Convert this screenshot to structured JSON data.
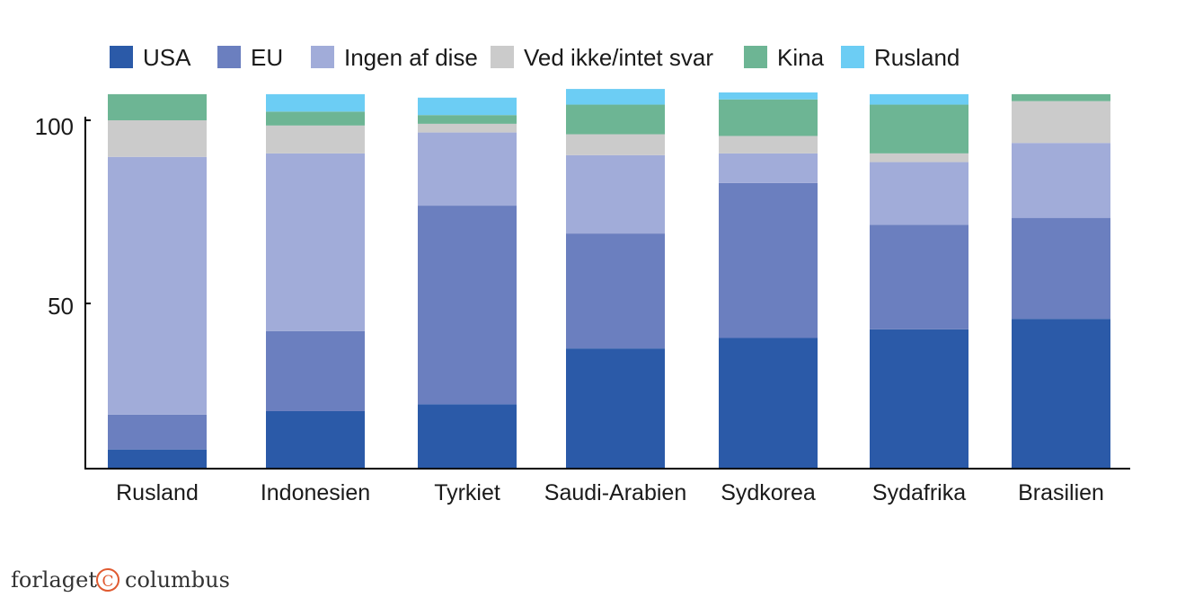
{
  "chart_data": {
    "type": "bar",
    "stacked": true,
    "categories": [
      "Rusland",
      "Indonesien",
      "Tyrkiet",
      "Saudi-Arabien",
      "Sydkorea",
      "Sydafrika",
      "Brasilien"
    ],
    "series": [
      {
        "name": "USA",
        "color": "#2b5aa8",
        "values": [
          5.5,
          16.5,
          18.5,
          34.5,
          37.5,
          40,
          43
        ]
      },
      {
        "name": "EU",
        "color": "#6b7fbf",
        "values": [
          10,
          23,
          57,
          33,
          44.5,
          30,
          29
        ]
      },
      {
        "name": "Ingen af dise",
        "color": "#a1acd9",
        "values": [
          74,
          51,
          21,
          22.5,
          8.5,
          18,
          21.5
        ]
      },
      {
        "name": "Ved ikke/intet svar",
        "color": "#cbcbcb",
        "values": [
          10.5,
          8,
          2.5,
          6,
          5,
          2.5,
          12
        ]
      },
      {
        "name": "Kina",
        "color": "#6db594",
        "values": [
          7.5,
          4,
          2.5,
          8.5,
          10.5,
          14,
          2
        ]
      },
      {
        "name": "Rusland",
        "color": "#6ccdf4",
        "values": [
          0,
          5,
          5,
          4.5,
          2,
          3,
          0
        ]
      }
    ],
    "yticks": [
      "100",
      "50"
    ],
    "ylim": [
      0,
      108
    ],
    "legend": "top",
    "grid": false
  },
  "logo": {
    "text_before": "forlaget",
    "symbol": "C",
    "text_after": "columbus"
  }
}
